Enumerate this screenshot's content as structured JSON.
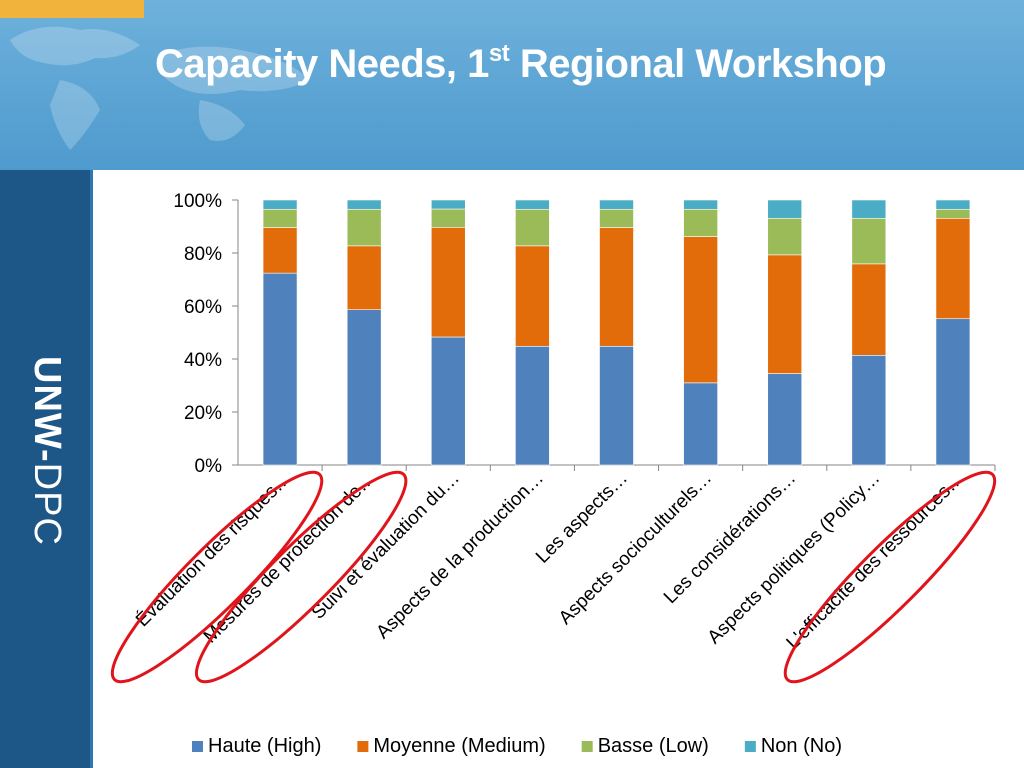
{
  "slide": {
    "title_main": "Capacity Needs, 1",
    "title_sup": "st",
    "title_rest": " Regional Workshop",
    "brand_bold": "UNW-",
    "brand_light": "DPC"
  },
  "colors": {
    "high": "#4f81bd",
    "medium": "#e36c0a",
    "low": "#9bbb59",
    "no": "#4bacc6",
    "header": "#5aa3d3",
    "sidebar": "#1d5787",
    "accent": "#f2b33d",
    "highlight_ellipse": "#e0141b"
  },
  "chart_data": {
    "type": "bar",
    "stacked": "percent",
    "title": "",
    "xlabel": "",
    "ylabel": "",
    "ylim": [
      0,
      100
    ],
    "yticks": [
      "0%",
      "20%",
      "40%",
      "60%",
      "80%",
      "100%"
    ],
    "grid": false,
    "legend_position": "bottom",
    "categories": [
      "Évaluation des risques…",
      "Mesures de protection de…",
      "Suivi et évaluation du…",
      "Aspects de la production…",
      "Les aspects…",
      "Aspects socioculturels…",
      "Les considérations…",
      "Aspects politiques (Policy…",
      "L'efficacité des ressources…"
    ],
    "highlighted_categories": [
      0,
      1,
      8
    ],
    "series": [
      {
        "name": "Haute (High)",
        "color_key": "high",
        "values": [
          72.4,
          58.6,
          48.3,
          44.8,
          44.8,
          31.0,
          34.5,
          41.4,
          55.2
        ]
      },
      {
        "name": "Moyenne (Medium)",
        "color_key": "medium",
        "values": [
          17.2,
          24.1,
          41.4,
          37.9,
          44.8,
          55.2,
          44.8,
          34.5,
          37.9
        ]
      },
      {
        "name": "Basse (Low)",
        "color_key": "low",
        "values": [
          6.9,
          13.8,
          6.9,
          13.8,
          6.9,
          10.3,
          13.8,
          17.2,
          3.4
        ]
      },
      {
        "name": "Non (No)",
        "color_key": "no",
        "values": [
          3.5,
          3.5,
          3.4,
          3.5,
          3.5,
          3.5,
          6.9,
          6.9,
          3.5
        ]
      }
    ]
  }
}
